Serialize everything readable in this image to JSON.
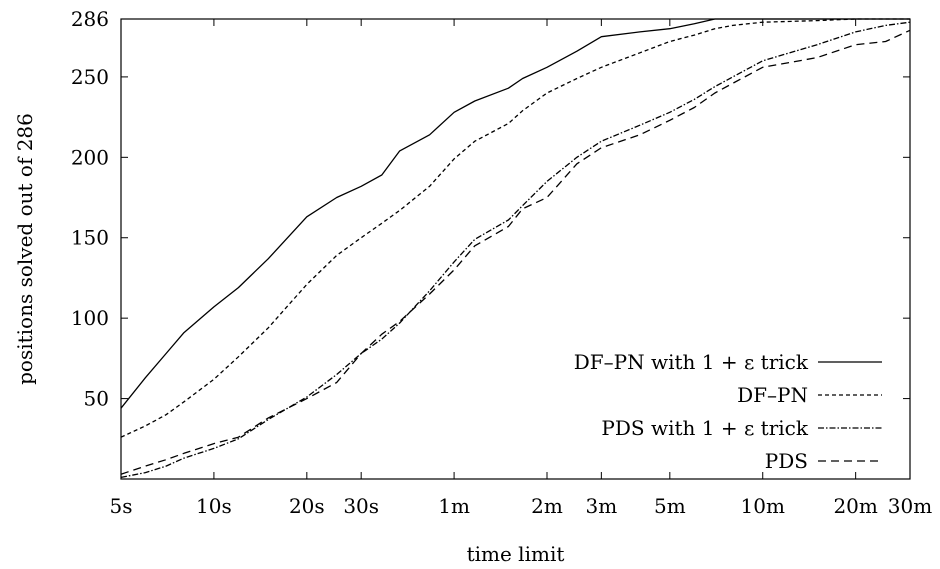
{
  "chart_data": {
    "type": "line",
    "title": "",
    "xlabel": "time limit",
    "ylabel": "positions solved out of 286",
    "x_scale": "log",
    "x_unit": "seconds",
    "xlim": [
      5,
      1800
    ],
    "ylim": [
      0,
      286
    ],
    "x_ticks": [
      {
        "value": 5,
        "label": "5s"
      },
      {
        "value": 10,
        "label": "10s"
      },
      {
        "value": 20,
        "label": "20s"
      },
      {
        "value": 30,
        "label": "30s"
      },
      {
        "value": 60,
        "label": "1m"
      },
      {
        "value": 120,
        "label": "2m"
      },
      {
        "value": 180,
        "label": "3m"
      },
      {
        "value": 300,
        "label": "5m"
      },
      {
        "value": 600,
        "label": "10m"
      },
      {
        "value": 1200,
        "label": "20m"
      },
      {
        "value": 1800,
        "label": "30m"
      }
    ],
    "y_ticks": [
      {
        "value": 50,
        "label": "50"
      },
      {
        "value": 100,
        "label": "100"
      },
      {
        "value": 150,
        "label": "150"
      },
      {
        "value": 200,
        "label": "200"
      },
      {
        "value": 250,
        "label": "250"
      },
      {
        "value": 286,
        "label": "286"
      }
    ],
    "grid": false,
    "legend_position": "bottom-right",
    "series": [
      {
        "name": "DF–PN with 1 + ε trick",
        "dash": "solid",
        "x": [
          5,
          6,
          7,
          8,
          10,
          12,
          15,
          20,
          25,
          30,
          35,
          40,
          50,
          60,
          70,
          90,
          100,
          120,
          150,
          180,
          240,
          300,
          360,
          420,
          480,
          600,
          900,
          1200,
          1500,
          1800
        ],
        "y": [
          44,
          63,
          78,
          91,
          107,
          119,
          137,
          163,
          175,
          182,
          189,
          204,
          214,
          228,
          235,
          243,
          249,
          256,
          266,
          275,
          278,
          280,
          283,
          286,
          286,
          286,
          286,
          286,
          286,
          286
        ]
      },
      {
        "name": "DF–PN",
        "dash": "4,3",
        "x": [
          5,
          6,
          7,
          8,
          10,
          12,
          15,
          20,
          25,
          30,
          35,
          40,
          50,
          60,
          70,
          90,
          100,
          120,
          150,
          180,
          240,
          300,
          360,
          420,
          480,
          600,
          900,
          1200,
          1500,
          1800
        ],
        "y": [
          26,
          33,
          40,
          48,
          62,
          76,
          94,
          121,
          139,
          150,
          159,
          167,
          182,
          199,
          210,
          221,
          229,
          240,
          249,
          256,
          265,
          272,
          276,
          280,
          282,
          284,
          285,
          286,
          286,
          286
        ]
      },
      {
        "name": "PDS with 1 + ε trick",
        "dash": "6,2,1.5,2",
        "x": [
          5,
          6,
          7,
          8,
          10,
          12,
          15,
          20,
          25,
          30,
          35,
          40,
          50,
          60,
          70,
          90,
          100,
          120,
          150,
          180,
          240,
          300,
          360,
          420,
          480,
          600,
          900,
          1200,
          1500,
          1800
        ],
        "y": [
          1,
          4,
          8,
          13,
          19,
          25,
          37,
          51,
          65,
          78,
          87,
          97,
          117,
          135,
          149,
          161,
          170,
          185,
          200,
          210,
          220,
          228,
          236,
          244,
          250,
          260,
          270,
          278,
          282,
          284
        ]
      },
      {
        "name": "PDS",
        "dash": "8,5",
        "x": [
          5,
          6,
          7,
          8,
          10,
          12,
          15,
          20,
          25,
          30,
          35,
          40,
          50,
          60,
          70,
          90,
          100,
          120,
          150,
          180,
          240,
          300,
          360,
          420,
          480,
          600,
          900,
          1200,
          1500,
          1800
        ],
        "y": [
          3,
          8,
          12,
          16,
          22,
          26,
          38,
          50,
          60,
          78,
          90,
          98,
          115,
          130,
          145,
          157,
          168,
          175,
          196,
          206,
          214,
          223,
          231,
          240,
          246,
          256,
          262,
          270,
          272,
          279
        ]
      }
    ]
  }
}
